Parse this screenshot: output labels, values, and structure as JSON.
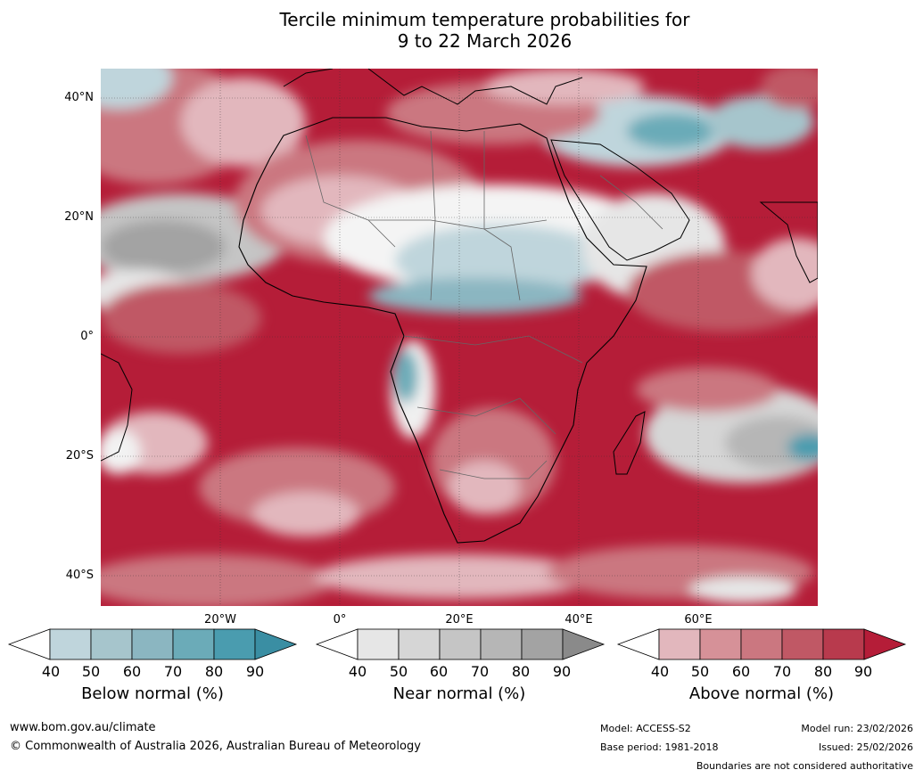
{
  "title": {
    "line1": "Tercile minimum temperature probabilities for",
    "line2": "9 to 22 March 2026"
  },
  "map": {
    "lat_labels": [
      "40°N",
      "20°N",
      "0°",
      "20°S",
      "40°S"
    ],
    "lon_labels": [
      "20°W",
      "0°",
      "20°E",
      "40°E",
      "60°E"
    ]
  },
  "colorbars": {
    "ticks": [
      "40",
      "50",
      "60",
      "70",
      "80",
      "90"
    ],
    "below": {
      "label": "Below normal (%)",
      "colors": [
        "#ffffff",
        "#bfd5dc",
        "#a6c5cc",
        "#8bb6c1",
        "#6babb8",
        "#4a9caf",
        "#3a8ea3"
      ]
    },
    "near": {
      "label": "Near normal (%)",
      "colors": [
        "#ffffff",
        "#e6e6e6",
        "#d6d6d6",
        "#c5c5c5",
        "#b6b6b6",
        "#a3a3a3",
        "#8a8a8a"
      ]
    },
    "above": {
      "label": "Above normal (%)",
      "colors": [
        "#ffffff",
        "#e2b7bd",
        "#d69198",
        "#cb7780",
        "#c05865",
        "#b83a4d",
        "#b51d38"
      ]
    }
  },
  "footer": {
    "website": "www.bom.gov.au/climate",
    "copyright": "© Commonwealth of Australia 2026, Australian Bureau of Meteorology",
    "model": "Model: ACCESS-S2",
    "base_period": "Base period: 1981-2018",
    "model_run": "Model run: 23/02/2026",
    "issued": "Issued: 25/02/2026",
    "disclaimer": "Boundaries are not considered authoritative"
  }
}
